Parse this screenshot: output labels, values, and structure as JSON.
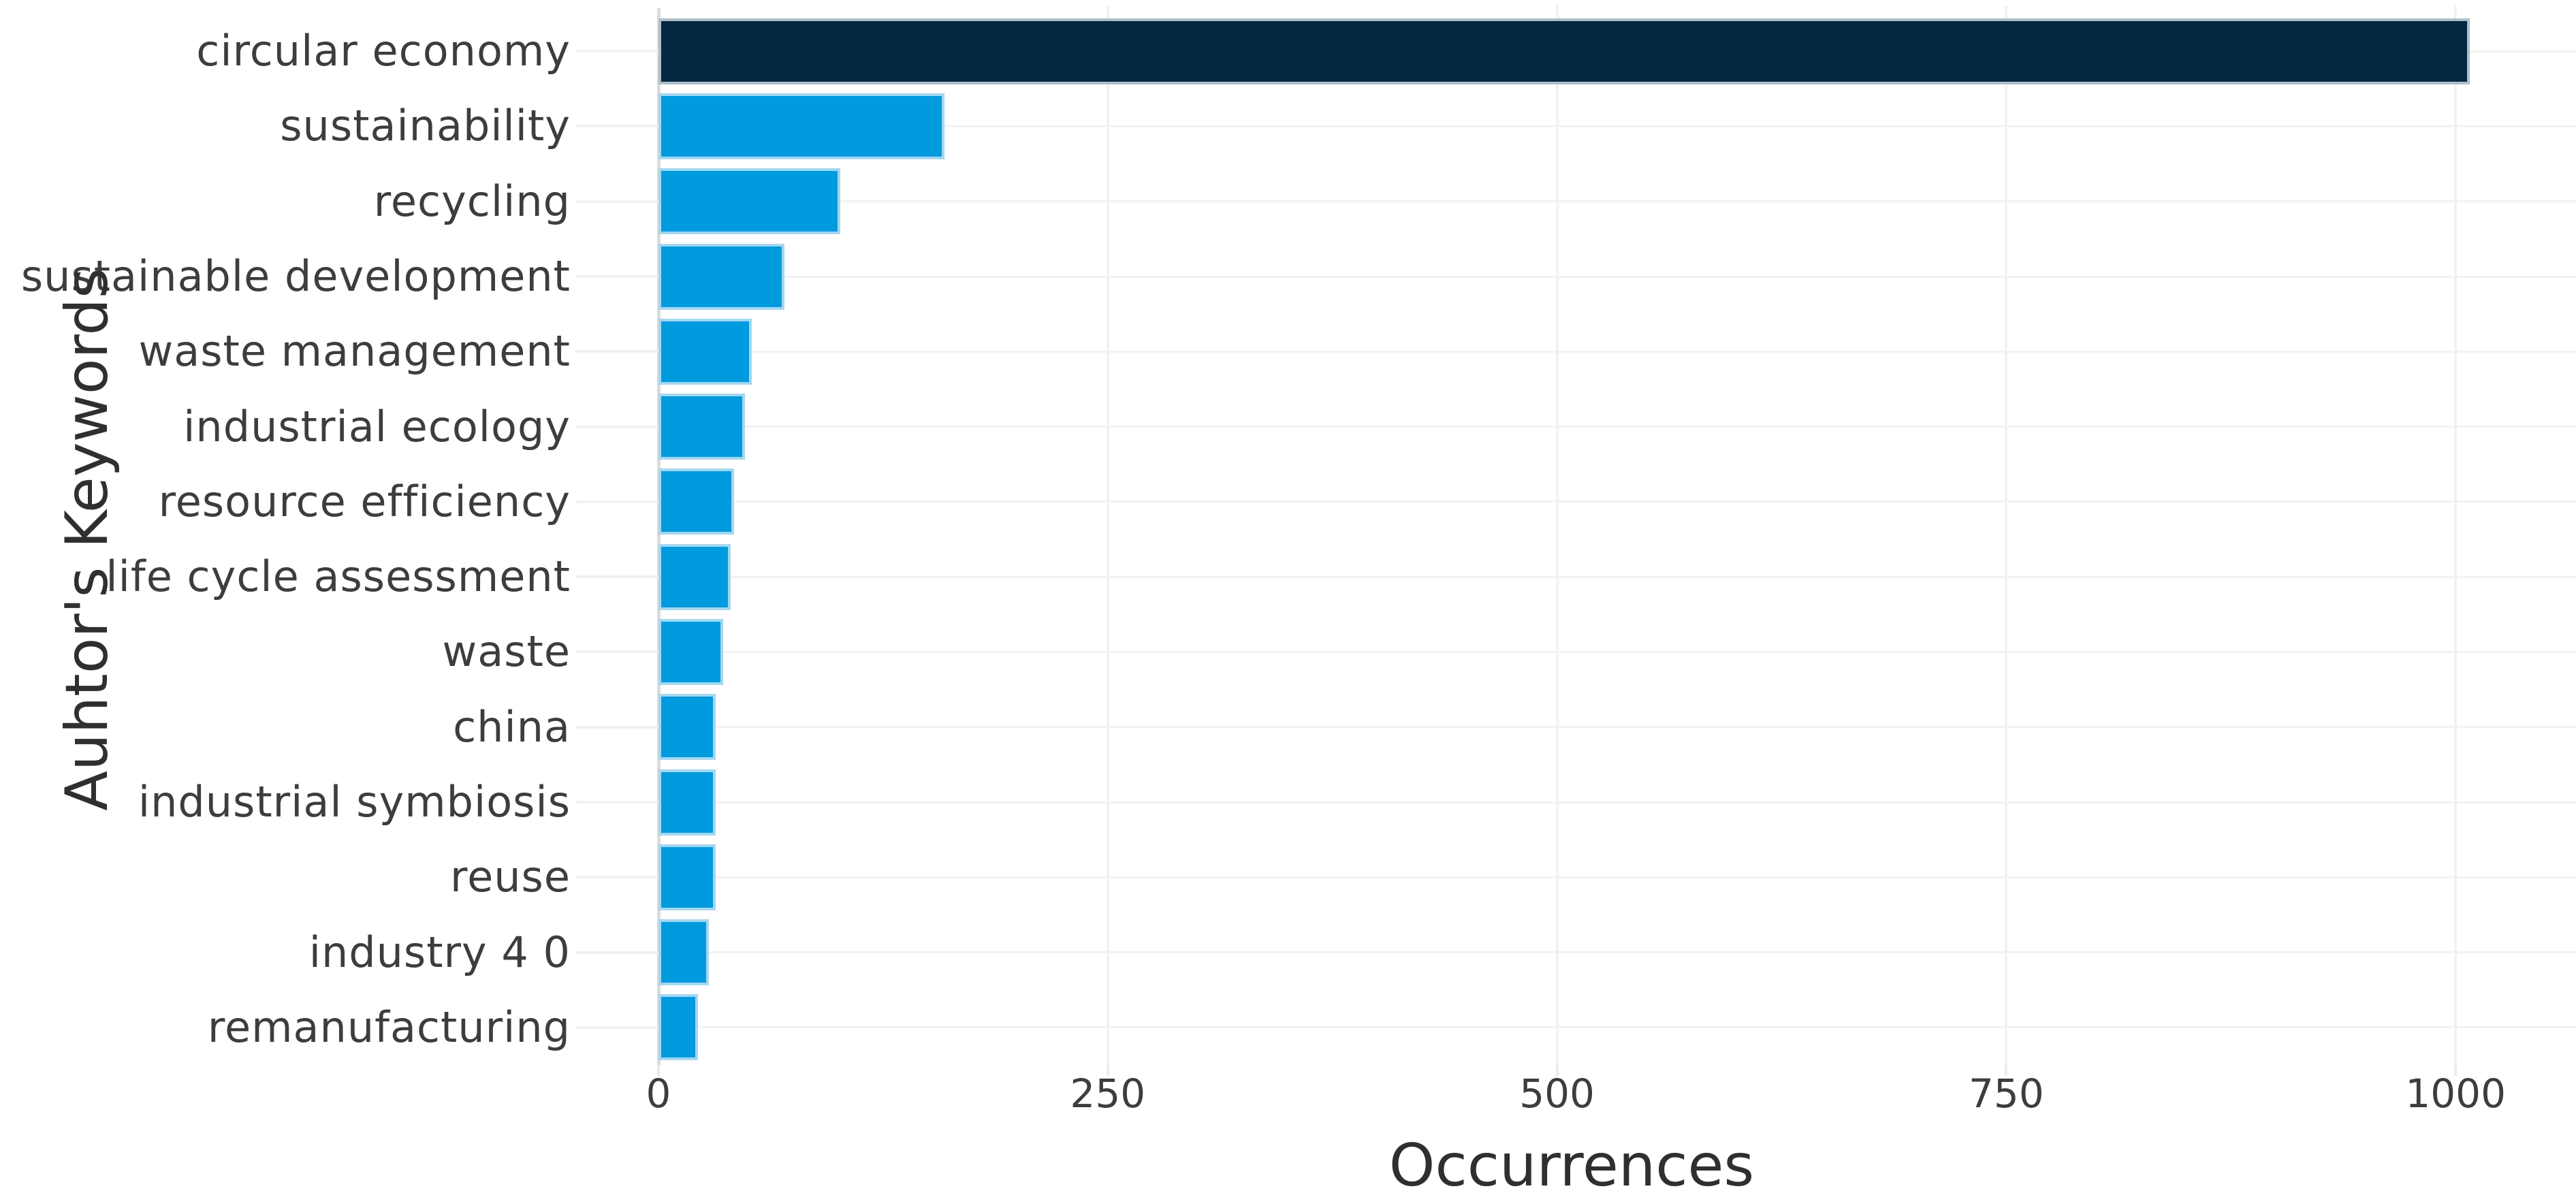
{
  "chart_data": {
    "type": "bar",
    "orientation": "horizontal",
    "title": "",
    "xlabel": "Occurrences",
    "ylabel": "Auhtor's Keywords",
    "categories": [
      "circular economy",
      "sustainability",
      "recycling",
      "sustainable development",
      "waste management",
      "industrial ecology",
      "resource efficiency",
      "life cycle assessment",
      "waste",
      "china",
      "industrial symbiosis",
      "reuse",
      "industry 4 0",
      "remanufacturing"
    ],
    "values": [
      1008,
      159,
      101,
      70,
      52,
      48,
      42,
      40,
      36,
      32,
      32,
      32,
      28,
      22
    ],
    "xticks": [
      0,
      250,
      500,
      750,
      1000
    ],
    "xlim": [
      0,
      1067
    ],
    "grid": true,
    "legend_position": "none",
    "colors": {
      "bar_highlight": "#032840",
      "bar_default": "#009ade",
      "bar_border_highlight": "#aebfcb",
      "bar_border_default": "#a4d7f0",
      "gridline": "#f2f2f2",
      "zeroline": "#dcdcdc",
      "tick_stub": "#ececec",
      "tick_text": "#3d3d3d",
      "title_text": "#2f2f2f",
      "background": "#ffffff"
    }
  }
}
